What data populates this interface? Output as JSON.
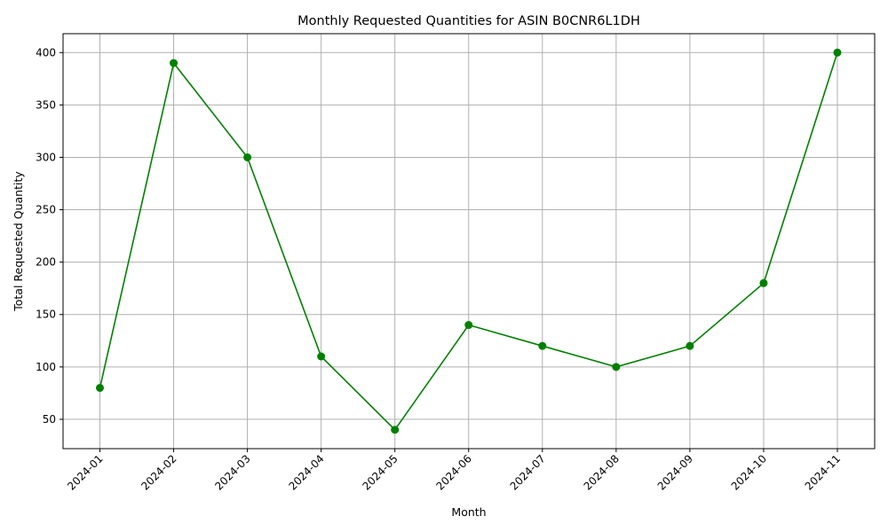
{
  "chart_data": {
    "type": "line",
    "title": "Monthly Requested Quantities for ASIN B0CNR6L1DH",
    "xlabel": "Month",
    "ylabel": "Total Requested Quantity",
    "categories": [
      "2024-01",
      "2024-02",
      "2024-03",
      "2024-04",
      "2024-05",
      "2024-06",
      "2024-07",
      "2024-08",
      "2024-09",
      "2024-10",
      "2024-11"
    ],
    "series": [
      {
        "values": [
          80,
          390,
          300,
          110,
          40,
          140,
          120,
          100,
          120,
          180,
          400
        ],
        "color": "#008000",
        "marker": "circle"
      }
    ],
    "yticks": [
      50,
      100,
      150,
      200,
      250,
      300,
      350,
      400
    ],
    "ylim": [
      22,
      418
    ],
    "grid": true,
    "x_tick_rotation": 45
  }
}
